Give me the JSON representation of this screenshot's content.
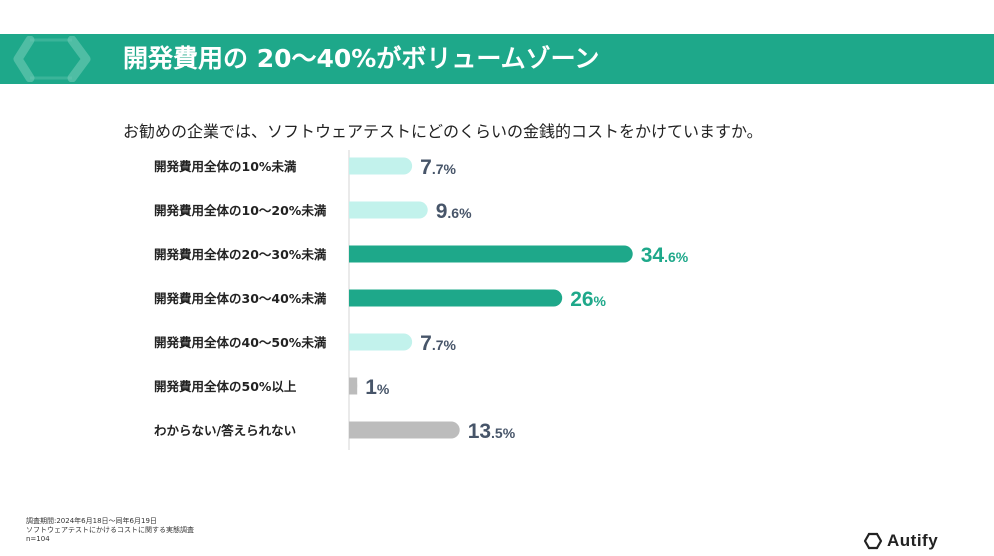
{
  "banner": {
    "title": "開発費用の 20〜40%がボリュームゾーン"
  },
  "question": "お勧めの企業では、ソフトウェアテストにどのくらいの金銭的コストをかけていますか。",
  "chart_data": {
    "type": "bar",
    "orientation": "horizontal",
    "categories": [
      "開発費用全体の10%未満",
      "開発費用全体の10〜20%未満",
      "開発費用全体の20〜30%未満",
      "開発費用全体の30〜40%未満",
      "開発費用全体の40〜50%未満",
      "開発費用全体の50%以上",
      "わからない/答えられない"
    ],
    "values": [
      7.7,
      9.6,
      34.6,
      26,
      7.7,
      1,
      13.5
    ],
    "value_labels": [
      {
        "main": "7",
        "sub": ".7%"
      },
      {
        "main": "9",
        "sub": ".6%"
      },
      {
        "main": "34",
        "sub": ".6%"
      },
      {
        "main": "26",
        "sub": "%"
      },
      {
        "main": "7",
        "sub": ".7%"
      },
      {
        "main": "1",
        "sub": "%"
      },
      {
        "main": "13",
        "sub": ".5%"
      }
    ],
    "bar_colors": [
      "#c2f2ec",
      "#c2f2ec",
      "#1ea88a",
      "#1ea88a",
      "#c2f2ec",
      "#bcbcbc",
      "#bcbcbc"
    ],
    "label_colors": [
      "#475569",
      "#475569",
      "#1ea88a",
      "#1ea88a",
      "#475569",
      "#475569",
      "#475569"
    ],
    "xlim": [
      0,
      40
    ],
    "grid": false,
    "legend": "none"
  },
  "footer": {
    "lines": [
      "調査期間:2024年6月18日〜同年6月19日",
      "ソフトウェアテストにかけるコストに関する実態調査",
      "n=104"
    ]
  },
  "logo": {
    "text": "Autify"
  },
  "colors": {
    "brand": "#1ea88a",
    "light": "#c2f2ec",
    "gray": "#bcbcbc",
    "label": "#475569"
  }
}
